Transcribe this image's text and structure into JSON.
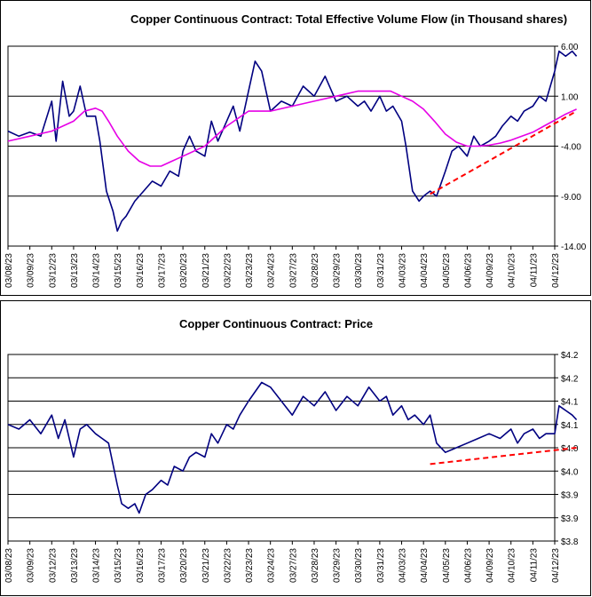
{
  "chart_data": [
    {
      "type": "line",
      "title": "Copper Continuous Contract: Total Effective Volume Flow (in Thousand shares)",
      "ylim": [
        -14,
        6
      ],
      "y_ticks": [
        "6.00",
        "1.00",
        "-4.00",
        "-9.00",
        "-14.00"
      ],
      "y_tick_values": [
        6,
        1,
        -4,
        -9,
        -14
      ],
      "categories": [
        "03/08/23",
        "03/09/23",
        "03/12/23",
        "03/13/23",
        "03/14/23",
        "03/15/23",
        "03/16/23",
        "03/17/23",
        "03/20/23",
        "03/21/23",
        "03/22/23",
        "03/23/23",
        "03/24/23",
        "03/27/23",
        "03/28/23",
        "03/29/23",
        "03/30/23",
        "03/31/23",
        "04/03/23",
        "04/04/23",
        "04/05/23",
        "04/06/23",
        "04/09/23",
        "04/10/23",
        "04/11/23",
        "04/12/23"
      ],
      "series": [
        {
          "color": "#000080",
          "style": "solid",
          "x": [
            0,
            0.5,
            1,
            1.5,
            2,
            2.2,
            2.5,
            2.8,
            3,
            3.3,
            3.6,
            4,
            4.2,
            4.5,
            4.8,
            5,
            5.2,
            5.4,
            5.8,
            6.2,
            6.6,
            7,
            7.4,
            7.8,
            8,
            8.3,
            8.6,
            9,
            9.3,
            9.6,
            10,
            10.3,
            10.6,
            11,
            11.3,
            11.6,
            12,
            12.5,
            13,
            13.5,
            14,
            14.5,
            15,
            15.5,
            16,
            16.3,
            16.6,
            17,
            17.3,
            17.6,
            18,
            18.2,
            18.5,
            18.8,
            19,
            19.3,
            19.6,
            20,
            20.3,
            20.6,
            21,
            21.3,
            21.6,
            22,
            22.3,
            22.6,
            23,
            23.3,
            23.6,
            24,
            24.3,
            24.6,
            25,
            25.2,
            25.5,
            25.8,
            26
          ],
          "values": [
            -2.5,
            -3.0,
            -2.6,
            -3.0,
            0.5,
            -3.5,
            2.5,
            -1.0,
            -0.5,
            2.0,
            -1.0,
            -1.0,
            -3.5,
            -8.5,
            -10.5,
            -12.5,
            -11.5,
            -11.0,
            -9.5,
            -8.5,
            -7.5,
            -8.0,
            -6.5,
            -7.0,
            -4.5,
            -3.0,
            -4.5,
            -5.0,
            -1.5,
            -3.5,
            -1.5,
            0.0,
            -2.5,
            1.5,
            4.5,
            3.5,
            -0.5,
            0.5,
            0.0,
            2.0,
            1.0,
            3.0,
            0.5,
            1.0,
            0.0,
            0.5,
            -0.5,
            1.0,
            -0.5,
            0.0,
            -1.5,
            -4.0,
            -8.5,
            -9.5,
            -9.0,
            -8.5,
            -9.0,
            -6.5,
            -4.5,
            -4.0,
            -5.0,
            -3.0,
            -4.0,
            -3.5,
            -3.0,
            -2.0,
            -1.0,
            -1.5,
            -0.5,
            0.0,
            1.0,
            0.5,
            3.5,
            5.5,
            5.0,
            5.5,
            5.0
          ]
        },
        {
          "color": "#e600e6",
          "style": "solid",
          "x": [
            0,
            1,
            2,
            3,
            3.5,
            4,
            4.3,
            4.6,
            5,
            5.5,
            6,
            6.5,
            7,
            7.5,
            8,
            9,
            10,
            11,
            12,
            13,
            14,
            15,
            16,
            17,
            17.5,
            18,
            18.5,
            19,
            19.5,
            20,
            20.5,
            21,
            21.5,
            22,
            22.5,
            23,
            23.5,
            24,
            24.5,
            25,
            25.5,
            26
          ],
          "values": [
            -3.5,
            -3.0,
            -2.5,
            -1.5,
            -0.5,
            -0.2,
            -0.5,
            -1.5,
            -3.0,
            -4.5,
            -5.5,
            -6.0,
            -6.0,
            -5.5,
            -5.0,
            -4.0,
            -2.0,
            -0.5,
            -0.5,
            0.0,
            0.5,
            1.0,
            1.5,
            1.5,
            1.5,
            1.0,
            0.5,
            -0.3,
            -1.5,
            -2.8,
            -3.6,
            -4.0,
            -4.0,
            -3.9,
            -3.7,
            -3.4,
            -3.0,
            -2.6,
            -2.0,
            -1.4,
            -0.8,
            -0.3
          ]
        },
        {
          "color": "#ff0000",
          "style": "dashed",
          "x": [
            19.3,
            26
          ],
          "values": [
            -8.8,
            -0.5
          ]
        }
      ]
    },
    {
      "type": "line",
      "title": "Copper Continuous Contract: Price",
      "ylim": [
        3.8,
        4.2
      ],
      "y_ticks": [
        "$4.2",
        "$4.2",
        "$4.1",
        "$4.1",
        "$4.0",
        "$4.0",
        "$3.9",
        "$3.9",
        "$3.8"
      ],
      "y_tick_values": [
        4.2,
        4.15,
        4.1,
        4.05,
        4.0,
        3.95,
        3.9,
        3.85,
        3.8
      ],
      "categories": [
        "03/08/23",
        "03/09/23",
        "03/12/23",
        "03/13/23",
        "03/14/23",
        "03/15/23",
        "03/16/23",
        "03/17/23",
        "03/20/23",
        "03/21/23",
        "03/22/23",
        "03/23/23",
        "03/24/23",
        "03/27/23",
        "03/28/23",
        "03/29/23",
        "03/30/23",
        "03/31/23",
        "04/03/23",
        "04/04/23",
        "04/05/23",
        "04/06/23",
        "04/09/23",
        "04/10/23",
        "04/11/23",
        "04/12/23"
      ],
      "series": [
        {
          "color": "#000080",
          "style": "solid",
          "x": [
            0,
            0.5,
            1,
            1.5,
            2,
            2.3,
            2.6,
            3,
            3.3,
            3.6,
            4,
            4.3,
            4.6,
            5,
            5.2,
            5.5,
            5.8,
            6,
            6.3,
            6.6,
            7,
            7.3,
            7.6,
            8,
            8.3,
            8.6,
            9,
            9.3,
            9.6,
            10,
            10.3,
            10.6,
            11,
            11.3,
            11.6,
            12,
            12.5,
            13,
            13.5,
            14,
            14.5,
            15,
            15.5,
            16,
            16.5,
            17,
            17.3,
            17.6,
            18,
            18.3,
            18.6,
            19,
            19.3,
            19.6,
            20,
            20.5,
            21,
            21.5,
            22,
            22.5,
            23,
            23.3,
            23.6,
            24,
            24.3,
            24.6,
            25,
            25.2,
            25.5,
            25.8,
            26
          ],
          "values": [
            4.05,
            4.04,
            4.06,
            4.03,
            4.07,
            4.02,
            4.06,
            3.98,
            4.04,
            4.05,
            4.03,
            4.02,
            4.01,
            3.92,
            3.88,
            3.87,
            3.88,
            3.86,
            3.9,
            3.91,
            3.93,
            3.92,
            3.96,
            3.95,
            3.98,
            3.99,
            3.98,
            4.03,
            4.01,
            4.05,
            4.04,
            4.07,
            4.1,
            4.12,
            4.14,
            4.13,
            4.1,
            4.07,
            4.11,
            4.09,
            4.12,
            4.08,
            4.11,
            4.09,
            4.13,
            4.1,
            4.11,
            4.07,
            4.09,
            4.06,
            4.07,
            4.05,
            4.07,
            4.01,
            3.99,
            4.0,
            4.01,
            4.02,
            4.03,
            4.02,
            4.04,
            4.01,
            4.03,
            4.04,
            4.02,
            4.03,
            4.03,
            4.09,
            4.08,
            4.07,
            4.06
          ]
        },
        {
          "color": "#ff0000",
          "style": "dashed",
          "x": [
            19.3,
            26
          ],
          "values": [
            3.965,
            4.0
          ]
        }
      ]
    }
  ]
}
